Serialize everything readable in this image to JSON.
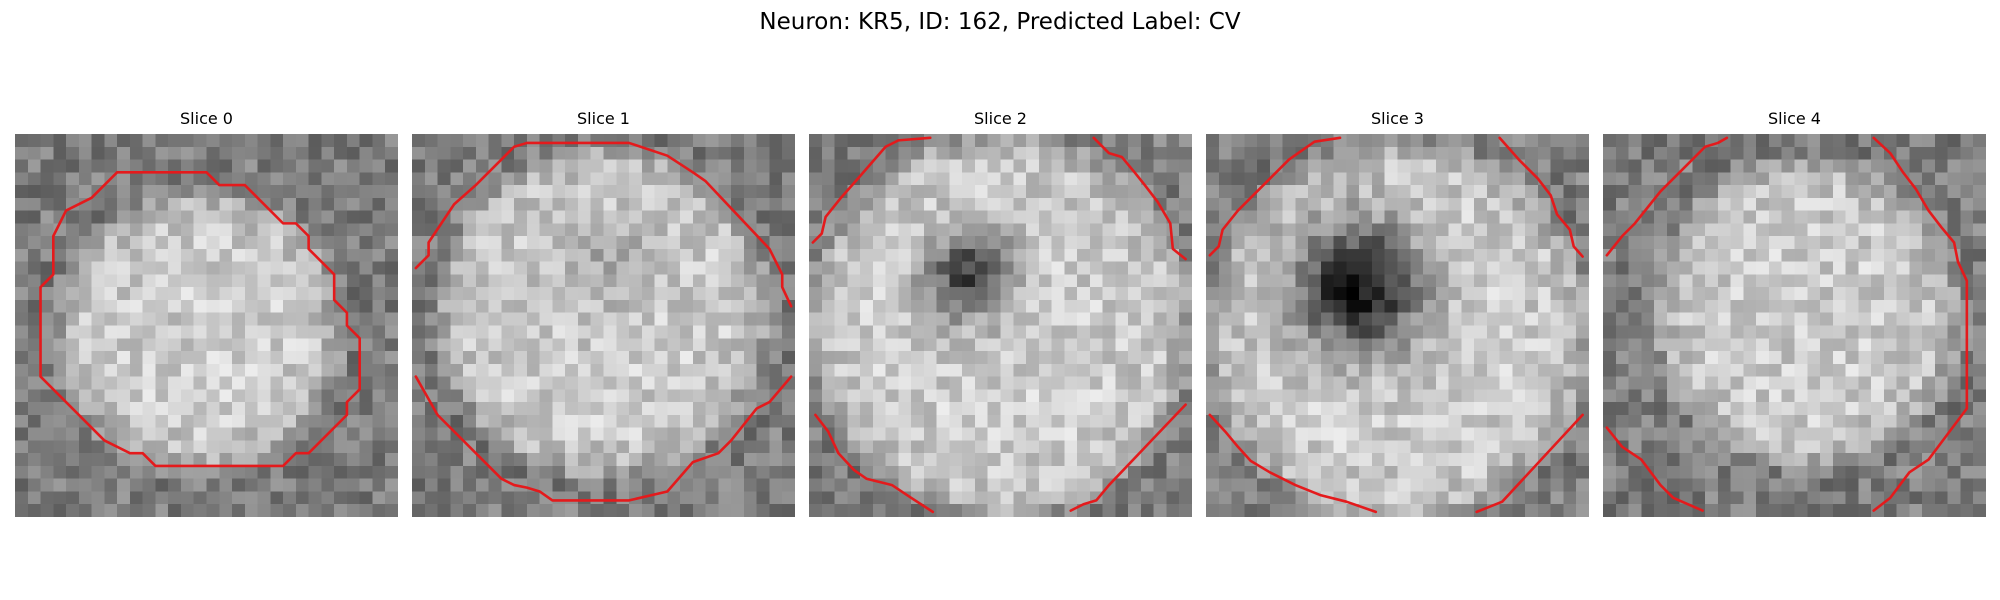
{
  "figure": {
    "title": "Neuron: KR5, ID: 162, Predicted Label: CV",
    "contour_color": "#e41a1c",
    "colormap": "gray",
    "grid_size": 30
  },
  "panels": [
    {
      "title": "Slice 0",
      "appearance": {
        "disk_cx": 14.5,
        "disk_cy": 15.5,
        "disk_r": 11.5,
        "dark_spot_strength": 0,
        "dark_spot_cx": 15,
        "dark_spot_cy": 15,
        "dark_spot_r": 2,
        "seed": 11
      },
      "contours": [
        [
          [
            8,
            3
          ],
          [
            15,
            3
          ],
          [
            16,
            4
          ],
          [
            18,
            4
          ],
          [
            21,
            7
          ],
          [
            22,
            7
          ],
          [
            23,
            8
          ],
          [
            23,
            9
          ],
          [
            25,
            11
          ],
          [
            25,
            13
          ],
          [
            26,
            14
          ],
          [
            26,
            15
          ],
          [
            27,
            16
          ],
          [
            27,
            20
          ],
          [
            26,
            21
          ],
          [
            26,
            22
          ],
          [
            23,
            25
          ],
          [
            22,
            25
          ],
          [
            21,
            26
          ],
          [
            11,
            26
          ],
          [
            10,
            25
          ],
          [
            9,
            25
          ],
          [
            7,
            24
          ],
          [
            2,
            19
          ],
          [
            2,
            12
          ],
          [
            3,
            11
          ],
          [
            3,
            8
          ],
          [
            4,
            6
          ],
          [
            6,
            5
          ],
          [
            7,
            4
          ],
          [
            8,
            3
          ]
        ]
      ]
    },
    {
      "title": "Slice 1",
      "appearance": {
        "disk_cx": 15,
        "disk_cy": 14,
        "disk_r": 13.5,
        "dark_spot_strength": 0.12,
        "dark_spot_cx": 15,
        "dark_spot_cy": 10,
        "dark_spot_r": 3,
        "seed": 23
      },
      "contours": [
        [
          [
            0.3,
            10.5
          ],
          [
            1.3,
            9.5
          ],
          [
            1.3,
            8.5
          ],
          [
            3.3,
            5.5
          ],
          [
            5,
            4
          ],
          [
            7,
            2
          ],
          [
            8,
            1
          ],
          [
            9,
            0.7
          ],
          [
            17,
            0.7
          ],
          [
            20,
            1.7
          ],
          [
            22,
            3
          ],
          [
            23,
            3.7
          ],
          [
            28,
            9
          ],
          [
            29,
            11
          ],
          [
            29,
            12
          ],
          [
            29.7,
            13.5
          ]
        ],
        [
          [
            29.7,
            19
          ],
          [
            28,
            21
          ],
          [
            27,
            21.5
          ],
          [
            25,
            24
          ],
          [
            24,
            25
          ],
          [
            22,
            25.7
          ],
          [
            20,
            28
          ],
          [
            17,
            28.7
          ],
          [
            11,
            28.7
          ],
          [
            10,
            28
          ],
          [
            9,
            27.7
          ],
          [
            8,
            27.5
          ],
          [
            7,
            27
          ],
          [
            6,
            26
          ],
          [
            2,
            22
          ],
          [
            0.3,
            19
          ]
        ]
      ]
    },
    {
      "title": "Slice 2",
      "appearance": {
        "disk_cx": 15,
        "disk_cy": 15,
        "disk_r": 15.5,
        "dark_spot_strength": 0.55,
        "dark_spot_cx": 12.5,
        "dark_spot_cy": 11,
        "dark_spot_r": 2.4,
        "seed": 37
      },
      "contours": [
        [
          [
            0.3,
            8.5
          ],
          [
            1,
            7.8
          ],
          [
            1.3,
            6.5
          ],
          [
            2.5,
            5
          ],
          [
            4,
            3.3
          ],
          [
            6,
            1
          ],
          [
            7,
            0.5
          ],
          [
            9.5,
            0.3
          ]
        ],
        [
          [
            22.3,
            0.3
          ],
          [
            23.5,
            1.5
          ],
          [
            24.5,
            1.8
          ],
          [
            25.5,
            3
          ],
          [
            26.3,
            4
          ],
          [
            27.3,
            5.3
          ],
          [
            28.3,
            7
          ],
          [
            28.5,
            9
          ],
          [
            29.5,
            9.8
          ]
        ],
        [
          [
            0.5,
            22
          ],
          [
            1.5,
            23.3
          ],
          [
            2.3,
            25
          ],
          [
            3.5,
            26.3
          ],
          [
            4.5,
            27
          ],
          [
            6.5,
            27.5
          ],
          [
            8,
            28.5
          ],
          [
            9.7,
            29.6
          ]
        ],
        [
          [
            20.5,
            29.5
          ],
          [
            21.5,
            29
          ],
          [
            22.5,
            28.7
          ],
          [
            23.5,
            27.5
          ],
          [
            29.5,
            21.2
          ]
        ]
      ]
    },
    {
      "title": "Slice 3",
      "appearance": {
        "disk_cx": 15,
        "disk_cy": 15.5,
        "disk_r": 15.5,
        "dark_spot_strength": 0.75,
        "dark_spot_cx": 12,
        "dark_spot_cy": 12,
        "dark_spot_r": 3.4,
        "seed": 51
      },
      "contours": [
        [
          [
            0.3,
            9.5
          ],
          [
            1,
            8.8
          ],
          [
            1.3,
            7.5
          ],
          [
            2.5,
            6
          ],
          [
            3.5,
            5
          ],
          [
            5,
            3.5
          ],
          [
            6.5,
            2
          ],
          [
            7.5,
            1.3
          ],
          [
            8.5,
            0.6
          ],
          [
            10.5,
            0.3
          ]
        ],
        [
          [
            23,
            0.3
          ],
          [
            24.5,
            2
          ],
          [
            26,
            3.5
          ],
          [
            27,
            4.8
          ],
          [
            27.5,
            6.3
          ],
          [
            28.5,
            7.5
          ],
          [
            28.8,
            8.8
          ],
          [
            29.5,
            9.6
          ]
        ],
        [
          [
            0.3,
            22
          ],
          [
            1.5,
            23.3
          ],
          [
            2.5,
            24.5
          ],
          [
            3.5,
            25.6
          ],
          [
            5,
            26.5
          ],
          [
            7,
            27.5
          ],
          [
            9,
            28.3
          ],
          [
            11,
            28.8
          ],
          [
            13.3,
            29.6
          ]
        ],
        [
          [
            21.2,
            29.6
          ],
          [
            22.2,
            29.2
          ],
          [
            23.2,
            28.8
          ],
          [
            29.5,
            22
          ]
        ]
      ]
    },
    {
      "title": "Slice 4",
      "appearance": {
        "disk_cx": 16,
        "disk_cy": 14,
        "disk_r": 12.5,
        "dark_spot_strength": 0,
        "dark_spot_cx": 15,
        "dark_spot_cy": 15,
        "dark_spot_r": 2,
        "seed": 67
      },
      "contours": [
        [
          [
            0.3,
            9.5
          ],
          [
            1.5,
            8
          ],
          [
            2.5,
            7
          ],
          [
            4.5,
            4.5
          ],
          [
            6.5,
            2.5
          ],
          [
            8,
            1
          ],
          [
            9,
            0.7
          ],
          [
            9.7,
            0.3
          ]
        ],
        [
          [
            21.2,
            0.3
          ],
          [
            22.5,
            1.5
          ],
          [
            23.5,
            3
          ],
          [
            24.5,
            4.3
          ],
          [
            25.5,
            6
          ],
          [
            26.5,
            7.3
          ],
          [
            27.5,
            8.5
          ],
          [
            27.8,
            10
          ],
          [
            28.5,
            11.5
          ],
          [
            28.5,
            21.5
          ],
          [
            27,
            23.5
          ],
          [
            25.5,
            25.5
          ],
          [
            24,
            26.5
          ],
          [
            22.5,
            28.5
          ],
          [
            21.2,
            29.5
          ]
        ],
        [
          [
            0.3,
            23
          ],
          [
            1.5,
            24.5
          ],
          [
            3,
            25.5
          ],
          [
            4.5,
            27.5
          ],
          [
            5.5,
            28.5
          ],
          [
            7.8,
            29.5
          ]
        ]
      ]
    }
  ]
}
